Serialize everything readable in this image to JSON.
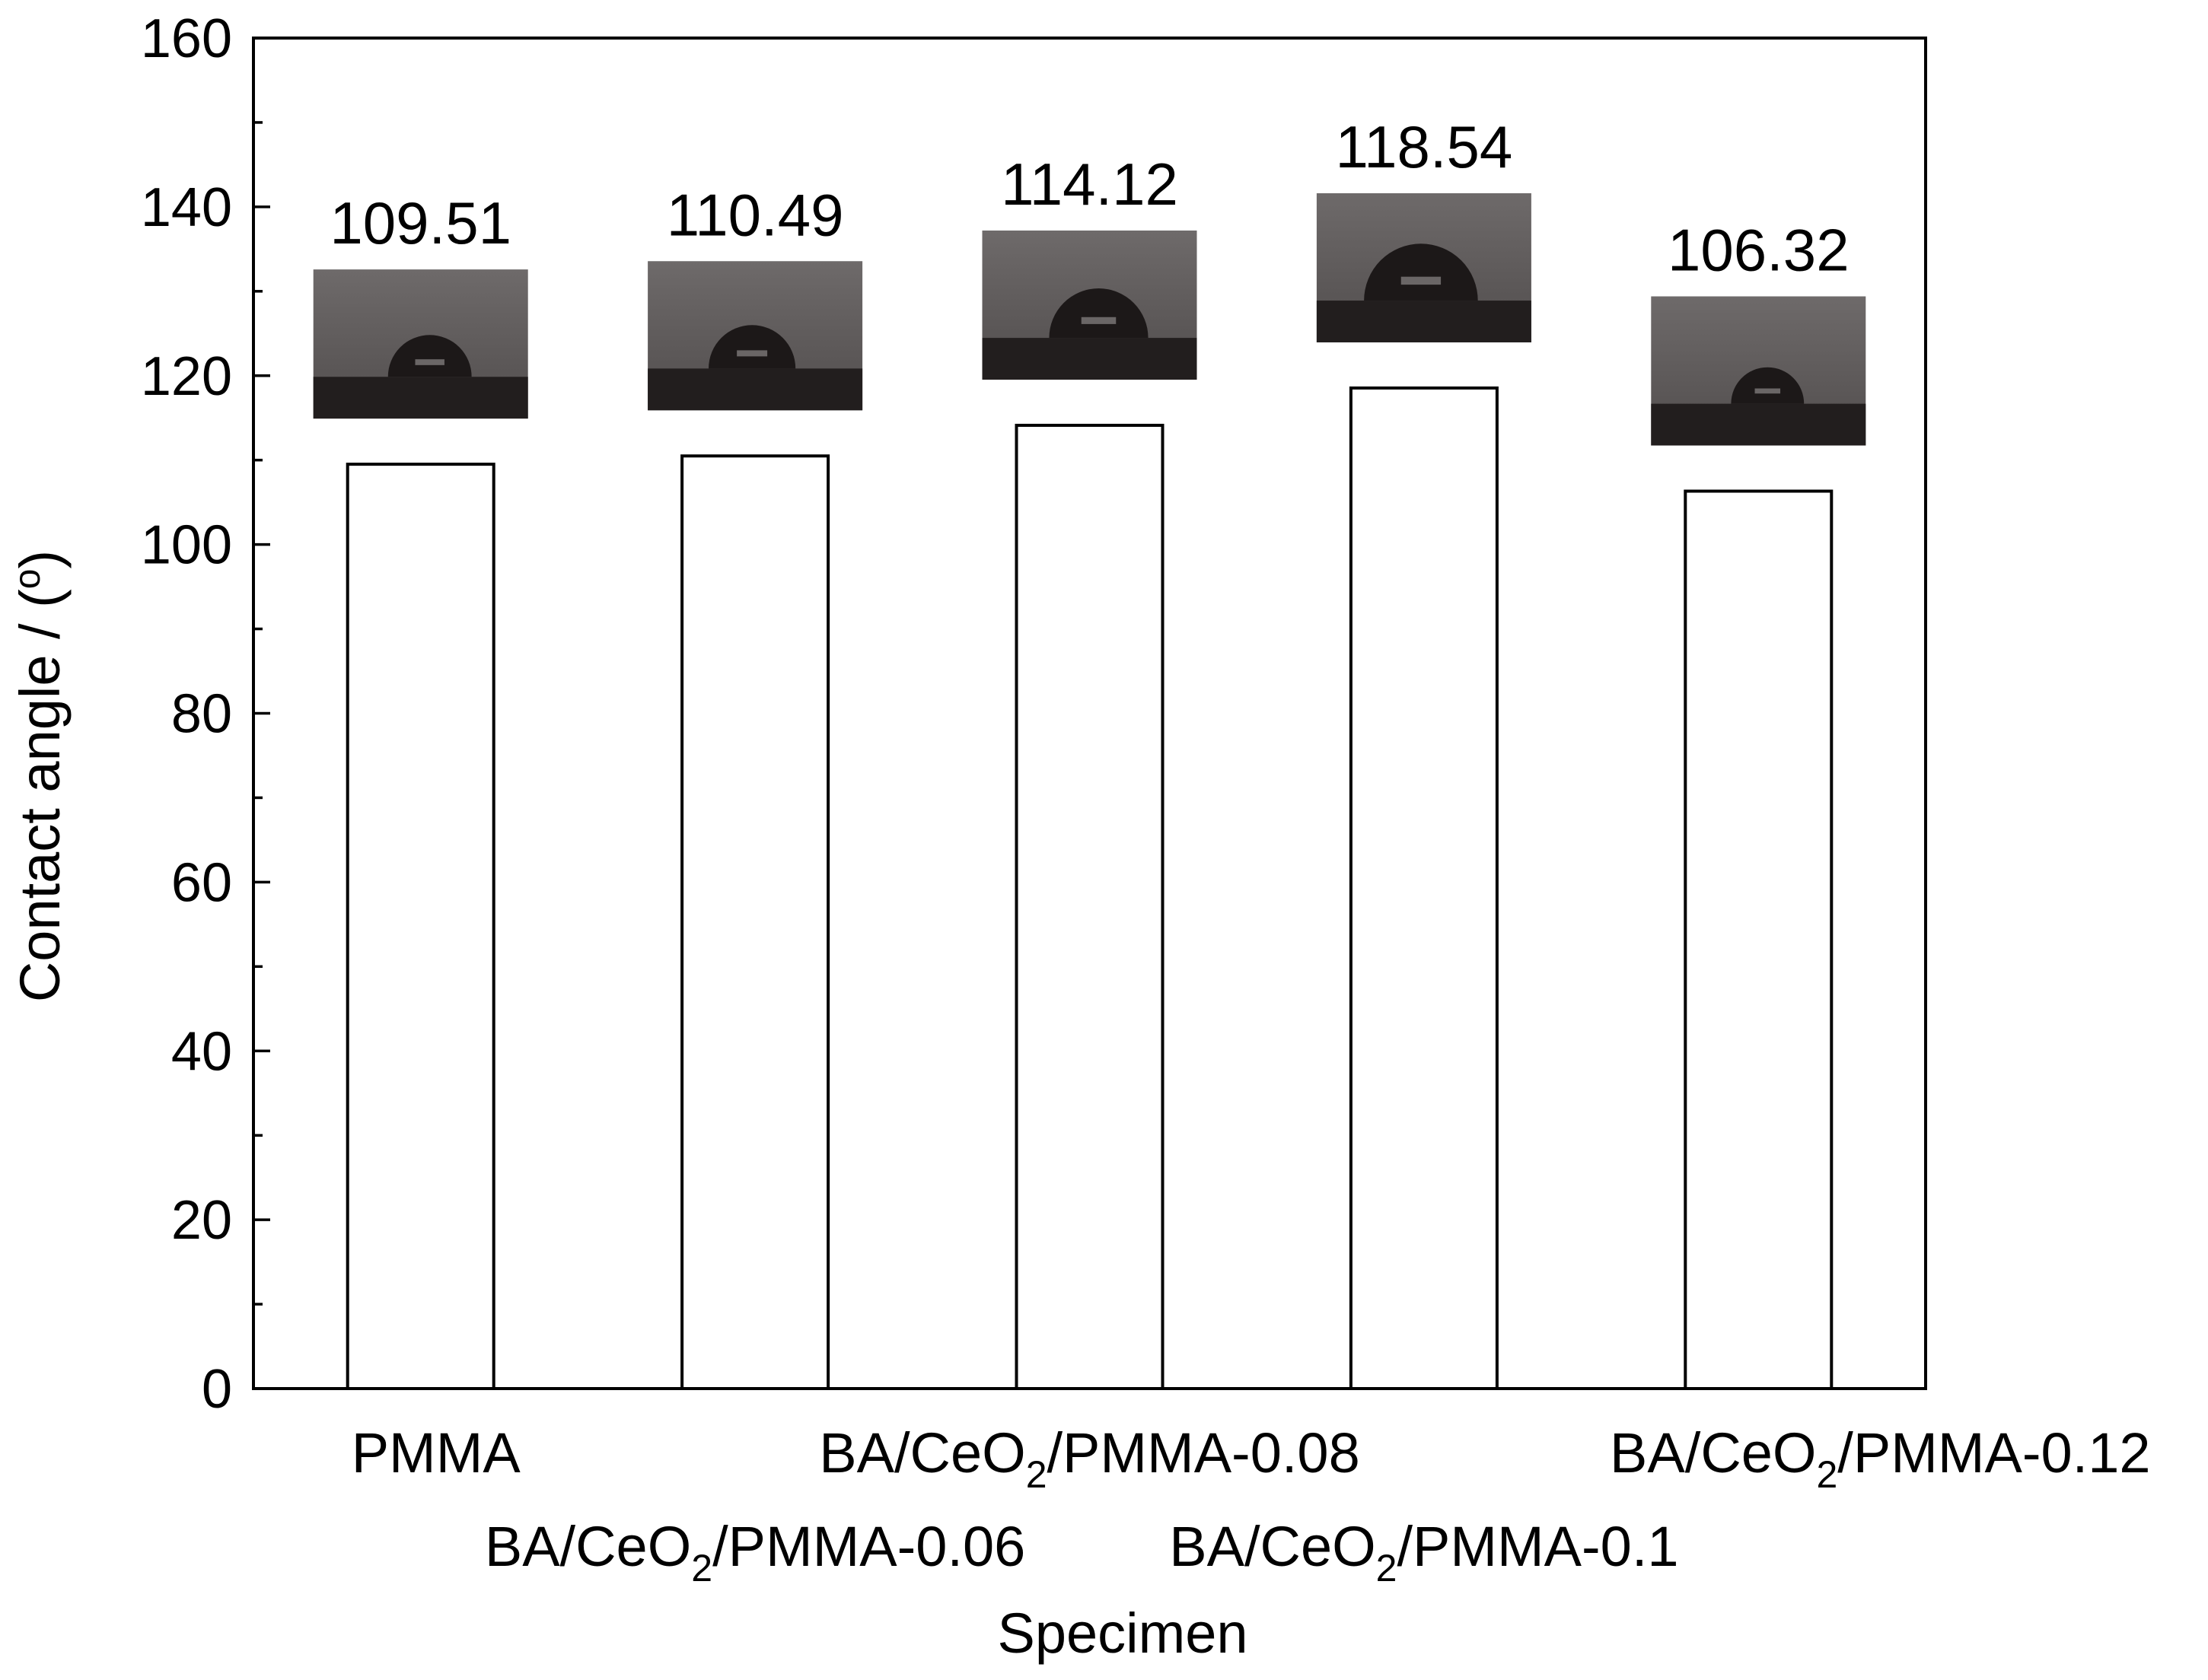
{
  "chart_data": {
    "type": "bar",
    "title": "",
    "xlabel": "Specimen",
    "ylabel": "Contact angle / (°)",
    "ylabel_parts": {
      "before": "Contact angle / (",
      "sup": "o",
      "after": ")"
    },
    "ylim": [
      0,
      160
    ],
    "yticks": [
      0,
      20,
      40,
      60,
      80,
      100,
      120,
      140,
      160
    ],
    "grid": false,
    "legend": "none",
    "categories": [
      "PMMA",
      "BA/CeO2/PMMA-0.06",
      "BA/CeO2/PMMA-0.08",
      "BA/CeO2/PMMA-0.1",
      "BA/CeO2/PMMA-0.12"
    ],
    "category_parts": [
      {
        "pre": "PMMA",
        "sub": "",
        "post": ""
      },
      {
        "pre": "BA/CeO",
        "sub": "2",
        "post": "/PMMA-0.06"
      },
      {
        "pre": "BA/CeO",
        "sub": "2",
        "post": "/PMMA-0.08"
      },
      {
        "pre": "BA/CeO",
        "sub": "2",
        "post": "/PMMA-0.1"
      },
      {
        "pre": "BA/CeO",
        "sub": "2",
        "post": "/PMMA-0.12"
      }
    ],
    "values": [
      109.51,
      110.49,
      114.12,
      118.54,
      106.32
    ],
    "data_labels": [
      "109.51",
      "110.49",
      "114.12",
      "118.54",
      "106.32"
    ],
    "bar_color": "#ffffff",
    "insets": "water-droplet-photo"
  }
}
